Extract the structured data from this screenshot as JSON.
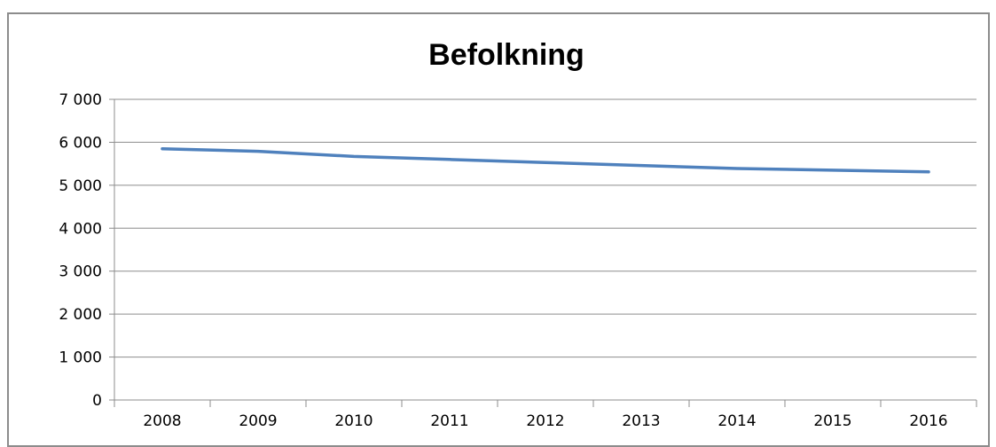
{
  "chart_data": {
    "type": "line",
    "title": "Befolkning",
    "xlabel": "",
    "ylabel": "",
    "categories": [
      "2008",
      "2009",
      "2010",
      "2011",
      "2012",
      "2013",
      "2014",
      "2015",
      "2016"
    ],
    "series": [
      {
        "values": [
          5850,
          5790,
          5670,
          5600,
          5530,
          5460,
          5390,
          5350,
          5310
        ]
      }
    ],
    "ylim": [
      0,
      7000
    ],
    "yticks": [
      0,
      1000,
      2000,
      3000,
      4000,
      5000,
      6000,
      7000
    ],
    "ytick_labels": [
      "0",
      "1 000",
      "2 000",
      "3 000",
      "4 000",
      "5 000",
      "6 000",
      "7 000"
    ],
    "grid": true,
    "legend": "none",
    "colors": {
      "line": "#4f81bd",
      "grid": "#8c8c8c",
      "axis": "#8c8c8c",
      "frame": "#8c8c8c"
    }
  }
}
